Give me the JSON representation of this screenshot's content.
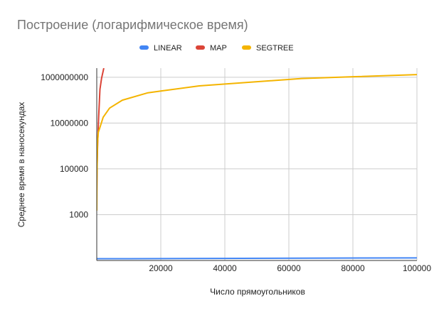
{
  "chart_data": {
    "type": "line",
    "title": "Построение (логарифмическое время)",
    "xlabel": "Число прямоугольников",
    "ylabel": "Среднее время в наносекундах",
    "xlim": [
      0,
      100000
    ],
    "ylim": [
      10,
      2500000000
    ],
    "yscale": "log",
    "x_ticks": [
      20000,
      40000,
      60000,
      80000,
      100000
    ],
    "x_tick_labels": [
      "20000",
      "40000",
      "60000",
      "80000",
      "100000"
    ],
    "y_ticks": [
      1000,
      100000,
      10000000,
      1000000000
    ],
    "y_tick_labels": [
      "1000",
      "100000",
      "10000000",
      "1000000000"
    ],
    "grid": true,
    "legend_position": "top",
    "series": [
      {
        "name": "LINEAR",
        "color": "#4285F4",
        "points": [
          [
            1,
            12
          ],
          [
            10,
            12
          ],
          [
            100,
            12
          ],
          [
            1000,
            12
          ],
          [
            10000,
            12
          ],
          [
            100000,
            13
          ]
        ]
      },
      {
        "name": "MAP",
        "color": "#DB4437",
        "points": [
          [
            1,
            2000
          ],
          [
            10,
            10000
          ],
          [
            100,
            150000
          ],
          [
            300,
            1500000
          ],
          [
            600,
            20000000
          ],
          [
            1000,
            300000000
          ],
          [
            1500,
            900000000
          ],
          [
            2200,
            2500000000
          ]
        ]
      },
      {
        "name": "SEGTREE",
        "color": "#F4B400",
        "points": [
          [
            1,
            1500
          ],
          [
            50,
            40000
          ],
          [
            250,
            1500000
          ],
          [
            500,
            4000000
          ],
          [
            1000,
            6500000
          ],
          [
            2000,
            18000000
          ],
          [
            4000,
            45000000
          ],
          [
            8000,
            100000000
          ],
          [
            16000,
            210000000
          ],
          [
            20000,
            250000000
          ],
          [
            32000,
            420000000
          ],
          [
            64000,
            880000000
          ],
          [
            80000,
            1050000000
          ],
          [
            100000,
            1300000000
          ]
        ]
      }
    ]
  }
}
